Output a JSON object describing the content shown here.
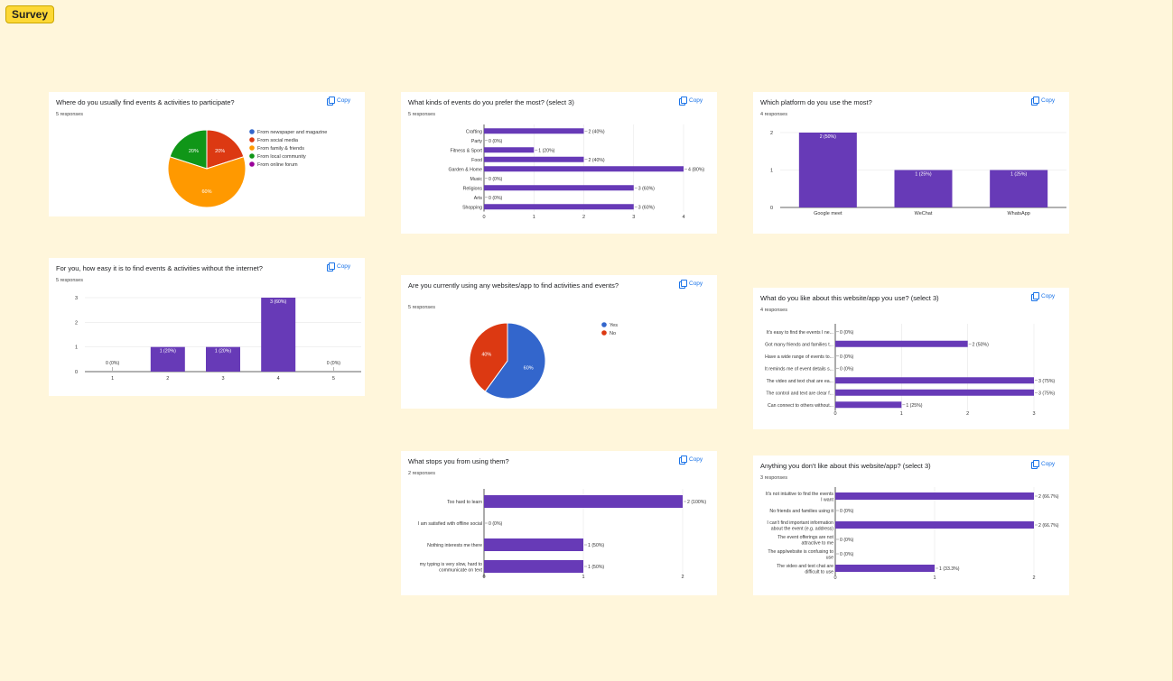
{
  "board": {
    "label": "Survey"
  },
  "copy_label": "Copy",
  "colors": {
    "purple": "#673ab7",
    "blue": "#3366cc",
    "red": "#dc3912",
    "orange": "#ff9900",
    "green": "#109618",
    "violet": "#990099"
  },
  "charts": [
    {
      "id": "c1",
      "title": "Where do you usually find events & activities to participate?",
      "responses": "5 responses",
      "chart_data": {
        "type": "pie",
        "slices": [
          {
            "label": "From newspaper and magazine",
            "value": 0,
            "color": "#3366cc",
            "text": ""
          },
          {
            "label": "From social media",
            "value": 20,
            "color": "#dc3912",
            "text": "20%"
          },
          {
            "label": "From family & friends",
            "value": 60,
            "color": "#ff9900",
            "text": "60%"
          },
          {
            "label": "From local community",
            "value": 20,
            "color": "#109618",
            "text": "20%"
          },
          {
            "label": "From online forum",
            "value": 0,
            "color": "#990099",
            "text": ""
          }
        ],
        "draw_order": [
          1,
          2,
          3
        ]
      }
    },
    {
      "id": "c2",
      "title": "What kinds of events do you prefer the most? (select 3)",
      "responses": "5 responses",
      "chart_data": {
        "type": "hbar",
        "categories": [
          "Crafting",
          "Party",
          "Fitness & Sport",
          "Food",
          "Garden & Home",
          "Music",
          "Religions",
          "Arts",
          "Shopping"
        ],
        "values": [
          2,
          0,
          1,
          2,
          4,
          0,
          3,
          0,
          3
        ],
        "labels": [
          "2 (40%)",
          "0 (0%)",
          "1 (20%)",
          "2 (40%)",
          "4 (80%)",
          "0 (0%)",
          "3 (60%)",
          "0 (0%)",
          "3 (60%)"
        ],
        "xlim": [
          0,
          4
        ],
        "ticks": [
          "0",
          "1",
          "2",
          "3",
          "4"
        ]
      }
    },
    {
      "id": "c3",
      "title": "Which platform do you use the most?",
      "responses": "4 responses",
      "chart_data": {
        "type": "bar",
        "categories": [
          "Google meet",
          "WeChat",
          "WhatsApp"
        ],
        "values": [
          2,
          1,
          1
        ],
        "labels": [
          "2 (50%)",
          "1 (25%)",
          "1 (25%)"
        ],
        "ylim": [
          0,
          2
        ],
        "ticks": [
          "0",
          "1",
          "2"
        ]
      }
    },
    {
      "id": "c4",
      "title": "For you, how easy it is to find events & activities without the internet?",
      "responses": "5 responses",
      "chart_data": {
        "type": "bar",
        "categories": [
          "1",
          "2",
          "3",
          "4",
          "5"
        ],
        "values": [
          0,
          1,
          1,
          3,
          0
        ],
        "labels": [
          "0 (0%)",
          "1 (20%)",
          "1 (20%)",
          "3 (60%)",
          "0 (0%)"
        ],
        "ylim": [
          0,
          3
        ],
        "ticks": [
          "0",
          "1",
          "2",
          "3"
        ]
      }
    },
    {
      "id": "c5",
      "title": "Are you currently using any websites/app to find activities and events?",
      "responses": "5 responses",
      "chart_data": {
        "type": "pie",
        "slices": [
          {
            "label": "Yes",
            "value": 60,
            "color": "#3366cc",
            "text": "60%"
          },
          {
            "label": "No",
            "value": 40,
            "color": "#dc3912",
            "text": "40%"
          }
        ],
        "draw_order": [
          0,
          1
        ]
      }
    },
    {
      "id": "c6",
      "title": "What do you like about this website/app you use? (select 3)",
      "responses": "4 responses",
      "chart_data": {
        "type": "hbar",
        "categories": [
          "It's easy to find the events I ne...",
          "Got many friends and families t...",
          "Have a wide range of events to...",
          "It reminds me of event details s...",
          "The video and text chat are ea...",
          "The control and text are clear f...",
          "Can connect to others without..."
        ],
        "values": [
          0,
          2,
          0,
          0,
          3,
          3,
          1
        ],
        "labels": [
          "0 (0%)",
          "2 (50%)",
          "0 (0%)",
          "0 (0%)",
          "3 (75%)",
          "3 (75%)",
          "1 (25%)"
        ],
        "xlim": [
          0,
          3
        ],
        "ticks": [
          "0",
          "1",
          "2",
          "3"
        ]
      }
    },
    {
      "id": "c7",
      "title": "What stops you from using them?",
      "responses": "2 responses",
      "chart_data": {
        "type": "hbar",
        "categories": [
          [
            "Too hard to learn"
          ],
          [
            "I am satisfied with offline social"
          ],
          [
            "Nothing interests me there"
          ],
          [
            "my typing is very slow, hard to",
            "communicate on text"
          ]
        ],
        "values": [
          2,
          0,
          1,
          1
        ],
        "labels": [
          "2 (100%)",
          "0 (0%)",
          "1 (50%)",
          "1 (50%)"
        ],
        "xlim": [
          0,
          2
        ],
        "ticks": [
          "0",
          "1",
          "2"
        ]
      }
    },
    {
      "id": "c8",
      "title": "Anything you don't like about this website/app? (select 3)",
      "responses": "3 responses",
      "chart_data": {
        "type": "hbar",
        "categories": [
          [
            "It's not intuitive to find the events",
            "I want"
          ],
          [
            "No friends and families using it"
          ],
          [
            "I can't find important information",
            "about the event (e.g. address)"
          ],
          [
            "The event offerings are not",
            "attractive to me"
          ],
          [
            "The app/website is confusing to",
            "use"
          ],
          [
            "The video and text chat are",
            "difficult to use"
          ]
        ],
        "values": [
          2,
          0,
          2,
          0,
          0,
          1
        ],
        "labels": [
          "2 (66.7%)",
          "0 (0%)",
          "2 (66.7%)",
          "0 (0%)",
          "0 (0%)",
          "1 (33.3%)"
        ],
        "xlim": [
          0,
          2
        ],
        "ticks": [
          "0",
          "1",
          "2"
        ]
      }
    }
  ]
}
